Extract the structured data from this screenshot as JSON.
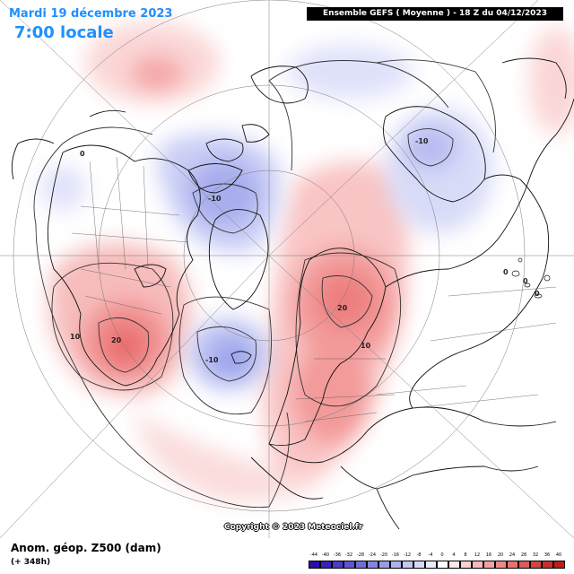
{
  "header": {
    "date_label": "Mardi 19 décembre 2023",
    "time_label": "7:00 locale",
    "model_box": "Ensemble GEFS ( Moyenne ) - 18 Z du 04/12/2023"
  },
  "footer": {
    "product": "Anom. géop. Z500 (dam)",
    "lead_time": "(+ 348h)",
    "copyright": "Copyright © 2023 Meteociel.fr"
  },
  "contour_labels": [
    {
      "id": "pacific-low",
      "text": "0"
    },
    {
      "id": "canada-arctic-low",
      "text": "-10"
    },
    {
      "id": "greenland-low",
      "text": "-10"
    },
    {
      "id": "siberia-low",
      "text": "-10"
    },
    {
      "id": "us-high-10",
      "text": "10"
    },
    {
      "id": "us-high-20",
      "text": "20"
    },
    {
      "id": "scandinavia-high-20",
      "text": "20"
    },
    {
      "id": "scandinavia-high-10",
      "text": "10"
    },
    {
      "id": "asia-zero-1",
      "text": "0"
    },
    {
      "id": "asia-zero-2",
      "text": "0"
    },
    {
      "id": "asia-zero-3",
      "text": "0"
    }
  ],
  "legend": {
    "ticks": [
      "-44",
      "-40",
      "-36",
      "-32",
      "-28",
      "-24",
      "-20",
      "-16",
      "-12",
      "-8",
      "-4",
      "0",
      "4",
      "8",
      "12",
      "16",
      "20",
      "24",
      "28",
      "32",
      "36",
      "40"
    ],
    "colors": [
      "#2b0fa8",
      "#3a23b8",
      "#4b3bc8",
      "#5e54d4",
      "#6f6ddc",
      "#8486e4",
      "#989ce9",
      "#acb1ee",
      "#c1c6f3",
      "#d5d9f7",
      "#e9ebfb",
      "#ffffff",
      "#fde7e7",
      "#fbd0d0",
      "#f8b8b8",
      "#f4a0a0",
      "#f08888",
      "#ea7070",
      "#e25959",
      "#d84242",
      "#cc2d2d",
      "#be1b1b"
    ],
    "accent": "#1e90ff"
  }
}
